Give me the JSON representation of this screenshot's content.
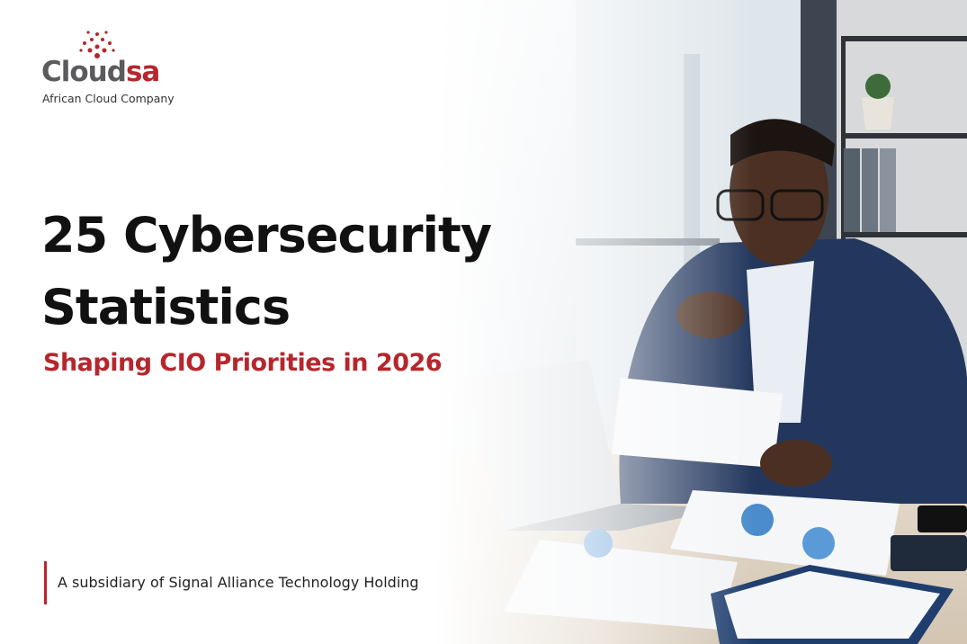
{
  "logo": {
    "name_main": "Cloud",
    "name_accent": "sa",
    "tagline": "African Cloud Company"
  },
  "headline": {
    "title_lines": [
      "25 Cybersecurity",
      "Statistics"
    ],
    "subtitle": "Shaping CIO Priorities in 2026"
  },
  "footer": {
    "text": "A subsidiary of Signal Alliance Technology Holding"
  }
}
